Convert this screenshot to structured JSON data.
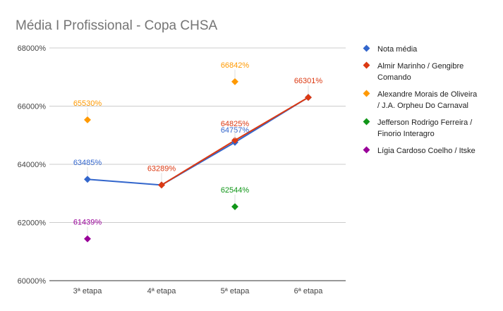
{
  "chart_data": {
    "type": "line",
    "title": "Média I Profissional - Copa CHSA",
    "categories": [
      "3ª etapa",
      "4ª etapa",
      "5ª etapa",
      "6ª etapa"
    ],
    "ylim": [
      60000,
      68000
    ],
    "yticks": [
      "60000%",
      "62000%",
      "64000%",
      "66000%",
      "68000%"
    ],
    "grid": true,
    "legend": "right",
    "series": [
      {
        "name": "Nota média",
        "color": "#3366cc",
        "values": [
          63485,
          63289,
          64757,
          66301
        ],
        "labels": [
          "63485%",
          null,
          "64757%",
          null
        ]
      },
      {
        "name": "Almir Marinho / Gengibre Comando",
        "color": "#dc3912",
        "values": [
          null,
          63289,
          64825,
          66301
        ],
        "labels": [
          null,
          "63289%",
          "64825%",
          "66301%"
        ]
      },
      {
        "name": "Alexandre Morais de Oliveira / J.A. Orpheu Do Carnaval",
        "color": "#ff9900",
        "values": [
          65530,
          null,
          66842,
          null
        ],
        "labels": [
          "65530%",
          null,
          "66842%",
          null
        ]
      },
      {
        "name": "Jefferson Rodrigo Ferreira / Finorio Interagro",
        "color": "#109618",
        "values": [
          null,
          null,
          62544,
          null
        ],
        "labels": [
          null,
          null,
          "62544%",
          null
        ]
      },
      {
        "name": "Lígia Cardoso Coelho / Itske",
        "color": "#990099",
        "values": [
          61439,
          null,
          null,
          null
        ],
        "labels": [
          "61439%",
          null,
          null,
          null
        ]
      }
    ],
    "legend_lines": [
      [
        "Nota média"
      ],
      [
        "Almir Marinho / Gengibre",
        "Comando"
      ],
      [
        "Alexandre Morais de Oliveira",
        "/ J.A. Orpheu Do Carnaval"
      ],
      [
        "Jefferson Rodrigo Ferreira /",
        "Finorio Interagro"
      ],
      [
        "Lígia Cardoso Coelho / Itske"
      ]
    ]
  }
}
